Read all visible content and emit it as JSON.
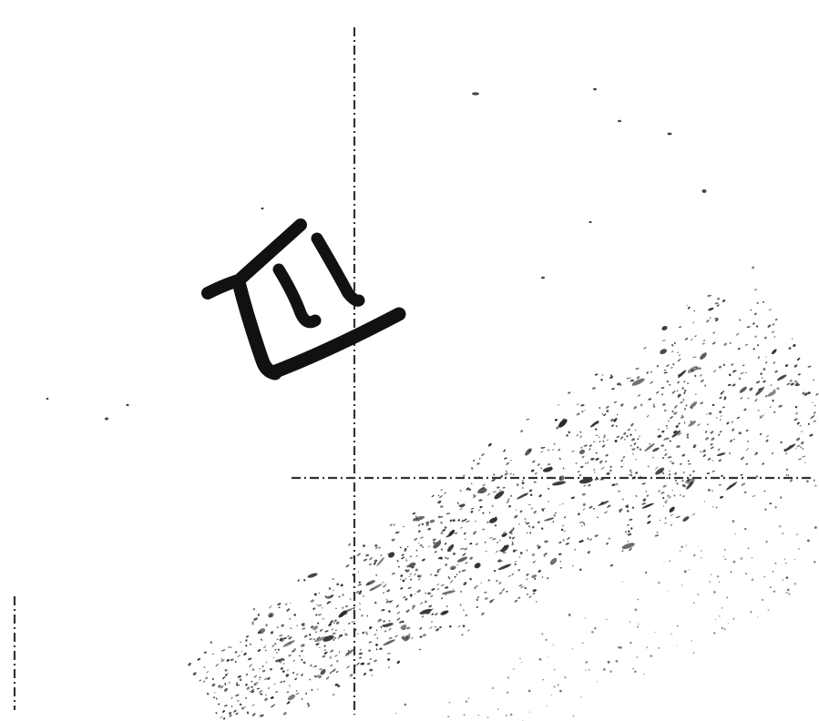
{
  "figure": {
    "ink_color": "#111111",
    "speckle_color": "#2b2b2b",
    "guide_color": "#333333",
    "glyph_name": "handwritten-bracket-glyph",
    "speckle_band_name": "speckle-band",
    "guides": [
      "vertical-dashdot-guide",
      "horizontal-dashdot-guide",
      "left-edge-dashdot-guide"
    ]
  }
}
